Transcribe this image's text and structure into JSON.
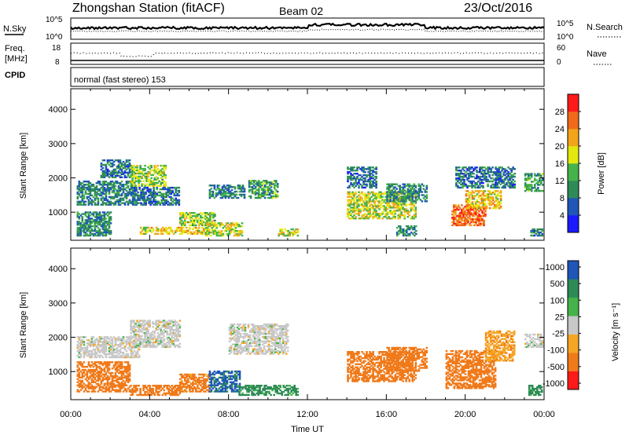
{
  "header": {
    "station": "Zhongshan Station (fitACF)",
    "beam": "Beam 02",
    "date": "23/Oct/2016"
  },
  "strips": {
    "nsky_label": "N.Sky",
    "nsky_ticks": [
      "10^5",
      "10^0"
    ],
    "nsearch_label": "N.Search",
    "nsearch_ticks": [
      "10^5",
      "10^0"
    ],
    "freq_label_1": "Freq.",
    "freq_label_2": "[MHz]",
    "freq_ticks": [
      "18",
      "8"
    ],
    "nave_label": "Nave",
    "nave_ticks": [
      "60",
      "0"
    ],
    "cpid_label": "CPID",
    "cpid_text": "normal (fast stereo) 153"
  },
  "colors": {
    "power": [
      "#1a1aff",
      "#1f56b8",
      "#2e8b57",
      "#45b34a",
      "#e3e80f",
      "#f2a51a",
      "#f06a1a",
      "#ff1a1a"
    ],
    "velocity": [
      "#1f56b8",
      "#2e8b57",
      "#45b34a",
      "#c8c8c8",
      "#f5a623",
      "#f07a1a",
      "#ff1a1a"
    ]
  },
  "chart_data": [
    {
      "type": "heatmap",
      "name": "power",
      "ylabel": "Slant Range [km]",
      "y_ticks": [
        "1000",
        "2000",
        "3000",
        "4000"
      ],
      "ylim": [
        180,
        4600
      ],
      "x_ticks": [
        "00:00",
        "04:00",
        "08:00",
        "12:00",
        "16:00",
        "20:00",
        "00:00"
      ],
      "colorbar_label": "Power [dB]",
      "colorbar_ticks": [
        "4",
        "8",
        "12",
        "16",
        "20",
        "24",
        "28"
      ],
      "colorbar_range": [
        0,
        32
      ],
      "blobs": [
        {
          "t0": 0.3,
          "t1": 3.2,
          "r0": 1200,
          "r1": 1900,
          "v": 9
        },
        {
          "t0": 1.5,
          "t1": 3.0,
          "r0": 2000,
          "r1": 2500,
          "v": 8
        },
        {
          "t0": 3.0,
          "t1": 4.8,
          "r0": 1750,
          "r1": 2350,
          "v": 16
        },
        {
          "t0": 3.2,
          "t1": 5.5,
          "r0": 1200,
          "r1": 1700,
          "v": 8
        },
        {
          "t0": 0.3,
          "t1": 2.0,
          "r0": 300,
          "r1": 1000,
          "v": 10
        },
        {
          "t0": 3.5,
          "t1": 7.0,
          "r0": 350,
          "r1": 550,
          "v": 20
        },
        {
          "t0": 5.5,
          "t1": 7.3,
          "r0": 600,
          "r1": 1000,
          "v": 16
        },
        {
          "t0": 6.8,
          "t1": 8.7,
          "r0": 300,
          "r1": 700,
          "v": 18
        },
        {
          "t0": 7.0,
          "t1": 8.8,
          "r0": 1400,
          "r1": 1800,
          "v": 9
        },
        {
          "t0": 9.0,
          "t1": 10.5,
          "r0": 1400,
          "r1": 1900,
          "v": 12
        },
        {
          "t0": 10.5,
          "t1": 11.5,
          "r0": 300,
          "r1": 500,
          "v": 18
        },
        {
          "t0": 14.0,
          "t1": 17.5,
          "r0": 800,
          "r1": 1600,
          "v": 18
        },
        {
          "t0": 16.0,
          "t1": 18.0,
          "r0": 1300,
          "r1": 1800,
          "v": 10
        },
        {
          "t0": 14.0,
          "t1": 15.5,
          "r0": 1700,
          "r1": 2300,
          "v": 8
        },
        {
          "t0": 16.5,
          "t1": 17.5,
          "r0": 300,
          "r1": 600,
          "v": 10
        },
        {
          "t0": 19.3,
          "t1": 21.0,
          "r0": 600,
          "r1": 1200,
          "v": 26
        },
        {
          "t0": 20.0,
          "t1": 21.8,
          "r0": 1100,
          "r1": 1600,
          "v": 20
        },
        {
          "t0": 19.5,
          "t1": 22.5,
          "r0": 1700,
          "r1": 2300,
          "v": 8
        },
        {
          "t0": 23.0,
          "t1": 23.9,
          "r0": 1600,
          "r1": 2100,
          "v": 12
        },
        {
          "t0": 23.3,
          "t1": 23.9,
          "r0": 300,
          "r1": 500,
          "v": 8
        }
      ]
    },
    {
      "type": "heatmap",
      "name": "velocity",
      "ylabel": "Slant Range [km]",
      "y_ticks": [
        "1000",
        "2000",
        "3000",
        "4000"
      ],
      "ylim": [
        180,
        4600
      ],
      "x_ticks": [
        "00:00",
        "04:00",
        "08:00",
        "12:00",
        "16:00",
        "20:00",
        "00:00"
      ],
      "xlabel": "Time UT",
      "colorbar_label": "Velocity [m s⁻¹]",
      "colorbar_ticks": [
        "1000",
        "500",
        "100",
        "25",
        "-25",
        "-100",
        "-500",
        "-1000"
      ],
      "blobs": [
        {
          "t0": 0.3,
          "t1": 3.5,
          "r0": 1400,
          "r1": 2000,
          "v": 0
        },
        {
          "t0": 3.0,
          "t1": 5.5,
          "r0": 1700,
          "r1": 2500,
          "v": 0
        },
        {
          "t0": 0.3,
          "t1": 3.0,
          "r0": 400,
          "r1": 1300,
          "v": -300
        },
        {
          "t0": 3.0,
          "t1": 5.5,
          "r0": 300,
          "r1": 600,
          "v": -300
        },
        {
          "t0": 5.5,
          "t1": 7.0,
          "r0": 400,
          "r1": 900,
          "v": -150
        },
        {
          "t0": 7.0,
          "t1": 8.6,
          "r0": 400,
          "r1": 1000,
          "v": 600
        },
        {
          "t0": 8.5,
          "t1": 11.5,
          "r0": 300,
          "r1": 600,
          "v": 150
        },
        {
          "t0": 8.0,
          "t1": 11.0,
          "r0": 1500,
          "r1": 2400,
          "v": 0
        },
        {
          "t0": 14.0,
          "t1": 17.5,
          "r0": 700,
          "r1": 1600,
          "v": -300
        },
        {
          "t0": 16.0,
          "t1": 18.0,
          "r0": 1000,
          "r1": 1700,
          "v": -200
        },
        {
          "t0": 19.0,
          "t1": 21.5,
          "r0": 500,
          "r1": 1600,
          "v": -250
        },
        {
          "t0": 21.0,
          "t1": 22.5,
          "r0": 1300,
          "r1": 2200,
          "v": -80
        },
        {
          "t0": 23.0,
          "t1": 23.9,
          "r0": 1700,
          "r1": 2100,
          "v": 0
        },
        {
          "t0": 23.2,
          "t1": 23.9,
          "r0": 300,
          "r1": 600,
          "v": 150
        }
      ]
    }
  ]
}
